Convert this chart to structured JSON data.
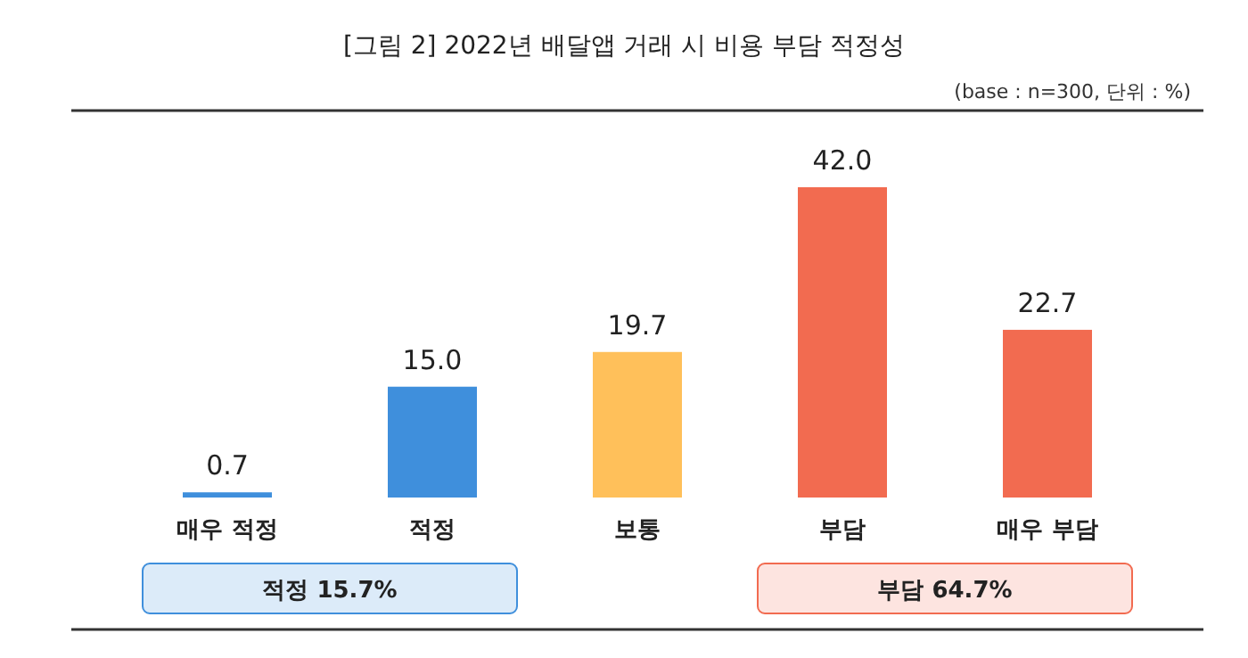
{
  "chart_data": {
    "type": "bar",
    "title": "[그림 2] 2022년 배달앱 거래 시 비용 부담 적정성",
    "subtitle": "(base : n=300, 단위 : %)",
    "categories": [
      "매우 적정",
      "적정",
      "보통",
      "부담",
      "매우 부담"
    ],
    "values": [
      0.7,
      15.0,
      19.7,
      42.0,
      22.7
    ],
    "colors": [
      "#3f8fdc",
      "#3f8fdc",
      "#ffc05a",
      "#f26b50",
      "#f26b50"
    ],
    "value_labels": [
      "0.7",
      "15.0",
      "19.7",
      "42.0",
      "22.7"
    ],
    "annotations": [
      "적정 15.7%",
      "부담 64.7%"
    ]
  }
}
